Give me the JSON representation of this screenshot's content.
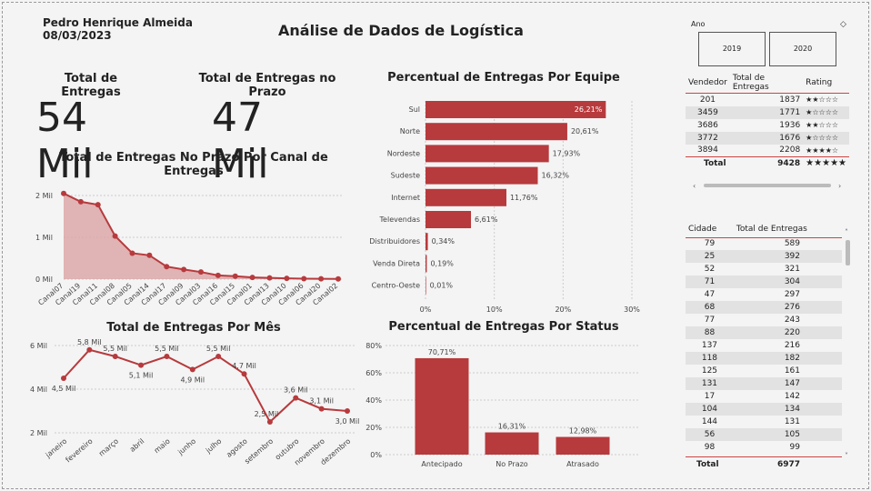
{
  "author": {
    "name": "Pedro Henrique Almeida",
    "date": "08/03/2023"
  },
  "page_title": "Análise de Dados de Logística",
  "kpis": [
    {
      "title": "Total de Entregas",
      "value": "54 Mil"
    },
    {
      "title": "Total de Entregas no Prazo",
      "value": "47 Mil"
    }
  ],
  "slicer": {
    "label": "Ano",
    "options": [
      "2019",
      "2020"
    ]
  },
  "seller_table": {
    "headers": [
      "Vendedor",
      "Total de Entregas",
      "Rating"
    ],
    "rows": [
      {
        "vendedor": "201",
        "total": "1837",
        "stars": "★★☆☆☆"
      },
      {
        "vendedor": "3459",
        "total": "1771",
        "stars": "★☆☆☆☆"
      },
      {
        "vendedor": "3686",
        "total": "1936",
        "stars": "★★☆☆☆"
      },
      {
        "vendedor": "3772",
        "total": "1676",
        "stars": "★☆☆☆☆"
      },
      {
        "vendedor": "3894",
        "total": "2208",
        "stars": "★★★★☆"
      }
    ],
    "total_label": "Total",
    "total_value": "9428",
    "total_stars": "★★★★★"
  },
  "city_table": {
    "headers": [
      "Cidade",
      "Total de Entregas"
    ],
    "rows": [
      [
        "79",
        "589"
      ],
      [
        "25",
        "392"
      ],
      [
        "52",
        "321"
      ],
      [
        "71",
        "304"
      ],
      [
        "47",
        "297"
      ],
      [
        "68",
        "276"
      ],
      [
        "77",
        "243"
      ],
      [
        "88",
        "220"
      ],
      [
        "137",
        "216"
      ],
      [
        "118",
        "182"
      ],
      [
        "125",
        "161"
      ],
      [
        "131",
        "147"
      ],
      [
        "17",
        "142"
      ],
      [
        "104",
        "134"
      ],
      [
        "144",
        "131"
      ],
      [
        "56",
        "105"
      ],
      [
        "98",
        "99"
      ]
    ],
    "total_label": "Total",
    "total_value": "6977"
  },
  "colors": {
    "accent": "#b73a3d",
    "area_fill": "#dba3a4",
    "background": "#f4f4f4"
  },
  "chart_data": [
    {
      "type": "area",
      "title": "Total de Entregas No Prazo Por Canal de Entregas",
      "categories": [
        "Canal07",
        "Canal19",
        "Canal11",
        "Canal08",
        "Canal05",
        "Canal14",
        "Canal17",
        "Canal09",
        "Canal03",
        "Canal16",
        "Canal15",
        "Canal01",
        "Canal13",
        "Canal10",
        "Canal06",
        "Canal20",
        "Canal02"
      ],
      "values": [
        2050,
        1850,
        1780,
        1030,
        620,
        570,
        300,
        230,
        170,
        90,
        70,
        40,
        30,
        20,
        10,
        8,
        5
      ],
      "y_ticks": [
        "0 Mil",
        "1 Mil",
        "2 Mil"
      ],
      "ylim": [
        0,
        2000
      ],
      "grid": true
    },
    {
      "type": "line",
      "title": "Total de Entregas Por Mês",
      "categories": [
        "janeiro",
        "fevereiro",
        "março",
        "abril",
        "maio",
        "junho",
        "julho",
        "agosto",
        "setembro",
        "outubro",
        "novembro",
        "dezembro"
      ],
      "values": [
        4.5,
        5.8,
        5.5,
        5.1,
        5.5,
        4.9,
        5.5,
        4.7,
        2.5,
        3.6,
        3.1,
        3.0
      ],
      "labels": [
        "4,5 Mil",
        "5,8 Mil",
        "5,5 Mil",
        "5,1 Mil",
        "5,5 Mil",
        "4,9 Mil",
        "5,5 Mil",
        "4,7 Mil",
        "2,5 Mil",
        "3,6 Mil",
        "3,1 Mil",
        "3,0 Mil"
      ],
      "y_ticks": [
        "2 Mil",
        "4 Mil",
        "6 Mil"
      ],
      "ylim": [
        2,
        6
      ],
      "grid": true
    },
    {
      "type": "bar",
      "orientation": "horizontal",
      "title": "Percentual de Entregas Por Equipe",
      "categories": [
        "Sul",
        "Norte",
        "Nordeste",
        "Sudeste",
        "Internet",
        "Televendas",
        "Distribuidores",
        "Venda Direta",
        "Centro-Oeste"
      ],
      "values": [
        26.21,
        20.61,
        17.93,
        16.32,
        11.76,
        6.61,
        0.34,
        0.19,
        0.01
      ],
      "labels": [
        "26,21%",
        "20,61%",
        "17,93%",
        "16,32%",
        "11,76%",
        "6,61%",
        "0,34%",
        "0,19%",
        "0,01%"
      ],
      "x_ticks": [
        "0%",
        "10%",
        "20%",
        "30%"
      ],
      "xlim": [
        0,
        30
      ],
      "grid": true
    },
    {
      "type": "bar",
      "title": "Percentual de Entregas Por Status",
      "categories": [
        "Antecipado",
        "No Prazo",
        "Atrasado"
      ],
      "values": [
        70.71,
        16.31,
        12.98
      ],
      "labels": [
        "70,71%",
        "16,31%",
        "12,98%"
      ],
      "y_ticks": [
        "0%",
        "20%",
        "40%",
        "60%",
        "80%"
      ],
      "ylim": [
        0,
        80
      ],
      "grid": true
    }
  ]
}
